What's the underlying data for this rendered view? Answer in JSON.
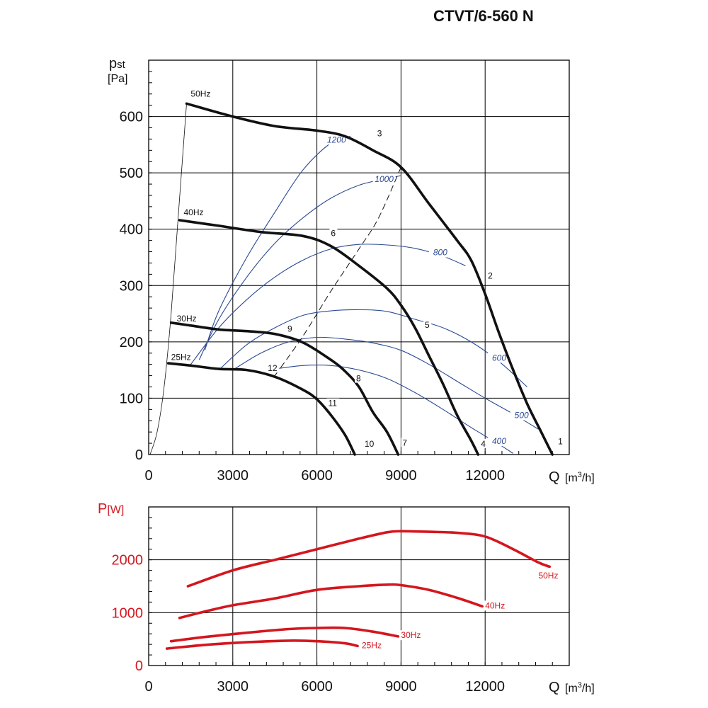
{
  "title": "CTVT/6-560 N",
  "colors": {
    "fan_curve": "#111111",
    "iso_curve": "#2b4a94",
    "power_curve": "#d4161e",
    "grid": "#000000"
  },
  "chart_data": [
    {
      "type": "line",
      "ylabel_main": "p",
      "ylabel_sub": "st",
      "yunit": "[Pa]",
      "xlabel": "Q",
      "xunit_pre": "[m",
      "xunit_sup": "3",
      "xunit_post": "/h]",
      "xlim": [
        0,
        15000
      ],
      "ylim": [
        0,
        700
      ],
      "xticks": [
        0,
        3000,
        6000,
        9000,
        12000
      ],
      "xtick_labels": [
        "0",
        "3000",
        "6000",
        "9000",
        "12000"
      ],
      "yticks": [
        0,
        100,
        200,
        300,
        400,
        500,
        600
      ],
      "ytick_labels": [
        "0",
        "100",
        "200",
        "300",
        "400",
        "500",
        "600"
      ],
      "grid": true,
      "series": [
        {
          "name": "50Hz",
          "label_x": 1500,
          "label_y": 635,
          "points": [
            [
              1350,
              623
            ],
            [
              3000,
              600
            ],
            [
              4500,
              583
            ],
            [
              6000,
              575
            ],
            [
              7000,
              565
            ],
            [
              8000,
              540
            ],
            [
              9000,
              510
            ],
            [
              10000,
              445
            ],
            [
              11000,
              380
            ],
            [
              11500,
              345
            ],
            [
              12000,
              285
            ],
            [
              12500,
              215
            ],
            [
              13000,
              150
            ],
            [
              13500,
              90
            ],
            [
              14000,
              40
            ],
            [
              14400,
              0
            ]
          ]
        },
        {
          "name": "40Hz",
          "label_x": 1250,
          "label_y": 425,
          "points": [
            [
              1100,
              416
            ],
            [
              2500,
              406
            ],
            [
              4000,
              395
            ],
            [
              5500,
              388
            ],
            [
              6500,
              370
            ],
            [
              7500,
              335
            ],
            [
              8500,
              295
            ],
            [
              9000,
              265
            ],
            [
              9500,
              225
            ],
            [
              10000,
              175
            ],
            [
              10500,
              125
            ],
            [
              11000,
              70
            ],
            [
              11500,
              25
            ],
            [
              11750,
              0
            ]
          ]
        },
        {
          "name": "30Hz",
          "label_x": 1000,
          "label_y": 236,
          "points": [
            [
              800,
              234
            ],
            [
              1500,
              229
            ],
            [
              2500,
              222
            ],
            [
              3500,
              219
            ],
            [
              4500,
              214
            ],
            [
              5500,
              199
            ],
            [
              6500,
              168
            ],
            [
              7000,
              148
            ],
            [
              7500,
              120
            ],
            [
              8000,
              75
            ],
            [
              8500,
              40
            ],
            [
              8900,
              0
            ]
          ]
        },
        {
          "name": "25Hz",
          "label_x": 800,
          "label_y": 168,
          "points": [
            [
              700,
              162
            ],
            [
              1500,
              158
            ],
            [
              2500,
              152
            ],
            [
              3500,
              150
            ],
            [
              4500,
              138
            ],
            [
              5500,
              115
            ],
            [
              6000,
              98
            ],
            [
              6500,
              70
            ],
            [
              7000,
              35
            ],
            [
              7350,
              0
            ]
          ]
        }
      ],
      "iso_lines": [
        {
          "label": "1200",
          "label_x": 6700,
          "label_y": 555,
          "points": [
            [
              2000,
              185
            ],
            [
              2500,
              255
            ],
            [
              3500,
              350
            ],
            [
              4500,
              430
            ],
            [
              5500,
              505
            ],
            [
              6500,
              553
            ],
            [
              7200,
              565
            ]
          ]
        },
        {
          "label": "1000",
          "label_x": 8400,
          "label_y": 485,
          "points": [
            [
              1800,
              168
            ],
            [
              2500,
              240
            ],
            [
              3500,
              315
            ],
            [
              4500,
              375
            ],
            [
              5500,
              420
            ],
            [
              6500,
              455
            ],
            [
              7500,
              478
            ],
            [
              8500,
              490
            ],
            [
              9000,
              495
            ]
          ]
        },
        {
          "label": "800",
          "label_x": 10400,
          "label_y": 355,
          "points": [
            [
              1500,
              160
            ],
            [
              2500,
              225
            ],
            [
              3500,
              275
            ],
            [
              4500,
              315
            ],
            [
              5500,
              345
            ],
            [
              6500,
              365
            ],
            [
              7500,
              373
            ],
            [
              8500,
              372
            ],
            [
              9500,
              366
            ],
            [
              10500,
              352
            ],
            [
              11300,
              335
            ]
          ]
        },
        {
          "label": "600",
          "label_x": 12500,
          "label_y": 168,
          "points": [
            [
              2500,
              150
            ],
            [
              3500,
              195
            ],
            [
              4500,
              225
            ],
            [
              5500,
              247
            ],
            [
              6500,
              255
            ],
            [
              7500,
              257
            ],
            [
              8500,
              254
            ],
            [
              9500,
              240
            ],
            [
              10500,
              225
            ],
            [
              11500,
              200
            ],
            [
              12500,
              165
            ],
            [
              13500,
              120
            ]
          ]
        },
        {
          "label": "500",
          "label_x": 13300,
          "label_y": 66,
          "points": [
            [
              3000,
              150
            ],
            [
              4000,
              180
            ],
            [
              5000,
              200
            ],
            [
              6000,
              208
            ],
            [
              7000,
              205
            ],
            [
              8000,
              198
            ],
            [
              9000,
              185
            ],
            [
              10000,
              160
            ],
            [
              11000,
              130
            ],
            [
              12000,
              100
            ],
            [
              13000,
              72
            ],
            [
              13900,
              45
            ]
          ]
        },
        {
          "label": "400",
          "label_x": 12500,
          "label_y": 20,
          "points": [
            [
              4500,
              152
            ],
            [
              5500,
              158
            ],
            [
              6500,
              158
            ],
            [
              7500,
              150
            ],
            [
              8500,
              135
            ],
            [
              9500,
              110
            ],
            [
              10500,
              80
            ],
            [
              11500,
              48
            ],
            [
              12500,
              18
            ],
            [
              13000,
              2
            ]
          ]
        }
      ],
      "system_curve": {
        "points": [
          [
            50,
            0
          ],
          [
            300,
            40
          ],
          [
            550,
            120
          ],
          [
            800,
            250
          ],
          [
            1050,
            420
          ],
          [
            1350,
            623
          ]
        ]
      },
      "dashed_curve": {
        "points": [
          [
            4500,
            140
          ],
          [
            5500,
            210
          ],
          [
            6500,
            290
          ],
          [
            7500,
            365
          ],
          [
            8200,
            420
          ],
          [
            9000,
            510
          ]
        ]
      },
      "point_labels": [
        {
          "label": "1",
          "x": 14600,
          "y": 18
        },
        {
          "label": "2",
          "x": 12100,
          "y": 312
        },
        {
          "label": "3",
          "x": 8150,
          "y": 565
        },
        {
          "label": "4",
          "x": 11850,
          "y": 14
        },
        {
          "label": "5",
          "x": 9850,
          "y": 225
        },
        {
          "label": "6",
          "x": 6500,
          "y": 388
        },
        {
          "label": "7",
          "x": 9050,
          "y": 16
        },
        {
          "label": "8",
          "x": 7400,
          "y": 130
        },
        {
          "label": "9",
          "x": 4950,
          "y": 218
        },
        {
          "label": "10",
          "x": 7700,
          "y": 14
        },
        {
          "label": "11",
          "x": 6400,
          "y": 86
        },
        {
          "label": "12",
          "x": 4250,
          "y": 148
        }
      ]
    },
    {
      "type": "line",
      "ylabel": "P",
      "yunit": "[W]",
      "xlabel": "Q",
      "xunit_pre": "[m",
      "xunit_sup": "3",
      "xunit_post": "/h]",
      "xlim": [
        0,
        15000
      ],
      "ylim": [
        0,
        3000
      ],
      "xticks": [
        0,
        3000,
        6000,
        9000,
        12000
      ],
      "xtick_labels": [
        "0",
        "3000",
        "6000",
        "9000",
        "12000"
      ],
      "yticks": [
        0,
        1000,
        2000
      ],
      "ytick_labels": [
        "0",
        "1000",
        "2000"
      ],
      "grid": true,
      "series": [
        {
          "name": "50Hz",
          "label_x": 13900,
          "label_y": 1650,
          "points": [
            [
              1400,
              1500
            ],
            [
              3000,
              1800
            ],
            [
              4500,
              2000
            ],
            [
              6000,
              2200
            ],
            [
              7500,
              2400
            ],
            [
              8500,
              2520
            ],
            [
              9000,
              2540
            ],
            [
              10000,
              2530
            ],
            [
              11000,
              2510
            ],
            [
              12000,
              2440
            ],
            [
              13000,
              2200
            ],
            [
              13900,
              1950
            ],
            [
              14300,
              1870
            ]
          ]
        },
        {
          "name": "40Hz",
          "label_x": 12000,
          "label_y": 1080,
          "points": [
            [
              1100,
              900
            ],
            [
              2000,
              1020
            ],
            [
              3000,
              1140
            ],
            [
              4500,
              1270
            ],
            [
              6000,
              1430
            ],
            [
              7500,
              1500
            ],
            [
              8500,
              1530
            ],
            [
              9000,
              1520
            ],
            [
              10000,
              1430
            ],
            [
              11000,
              1280
            ],
            [
              11900,
              1120
            ]
          ]
        },
        {
          "name": "30Hz",
          "label_x": 9000,
          "label_y": 520,
          "points": [
            [
              800,
              460
            ],
            [
              2000,
              540
            ],
            [
              3500,
              620
            ],
            [
              5000,
              690
            ],
            [
              6000,
              710
            ],
            [
              7000,
              710
            ],
            [
              8000,
              640
            ],
            [
              8900,
              550
            ]
          ]
        },
        {
          "name": "25Hz",
          "label_x": 7600,
          "label_y": 330,
          "points": [
            [
              650,
              320
            ],
            [
              2000,
              390
            ],
            [
              3500,
              440
            ],
            [
              5000,
              470
            ],
            [
              6000,
              460
            ],
            [
              7000,
              420
            ],
            [
              7450,
              370
            ]
          ]
        }
      ]
    }
  ]
}
